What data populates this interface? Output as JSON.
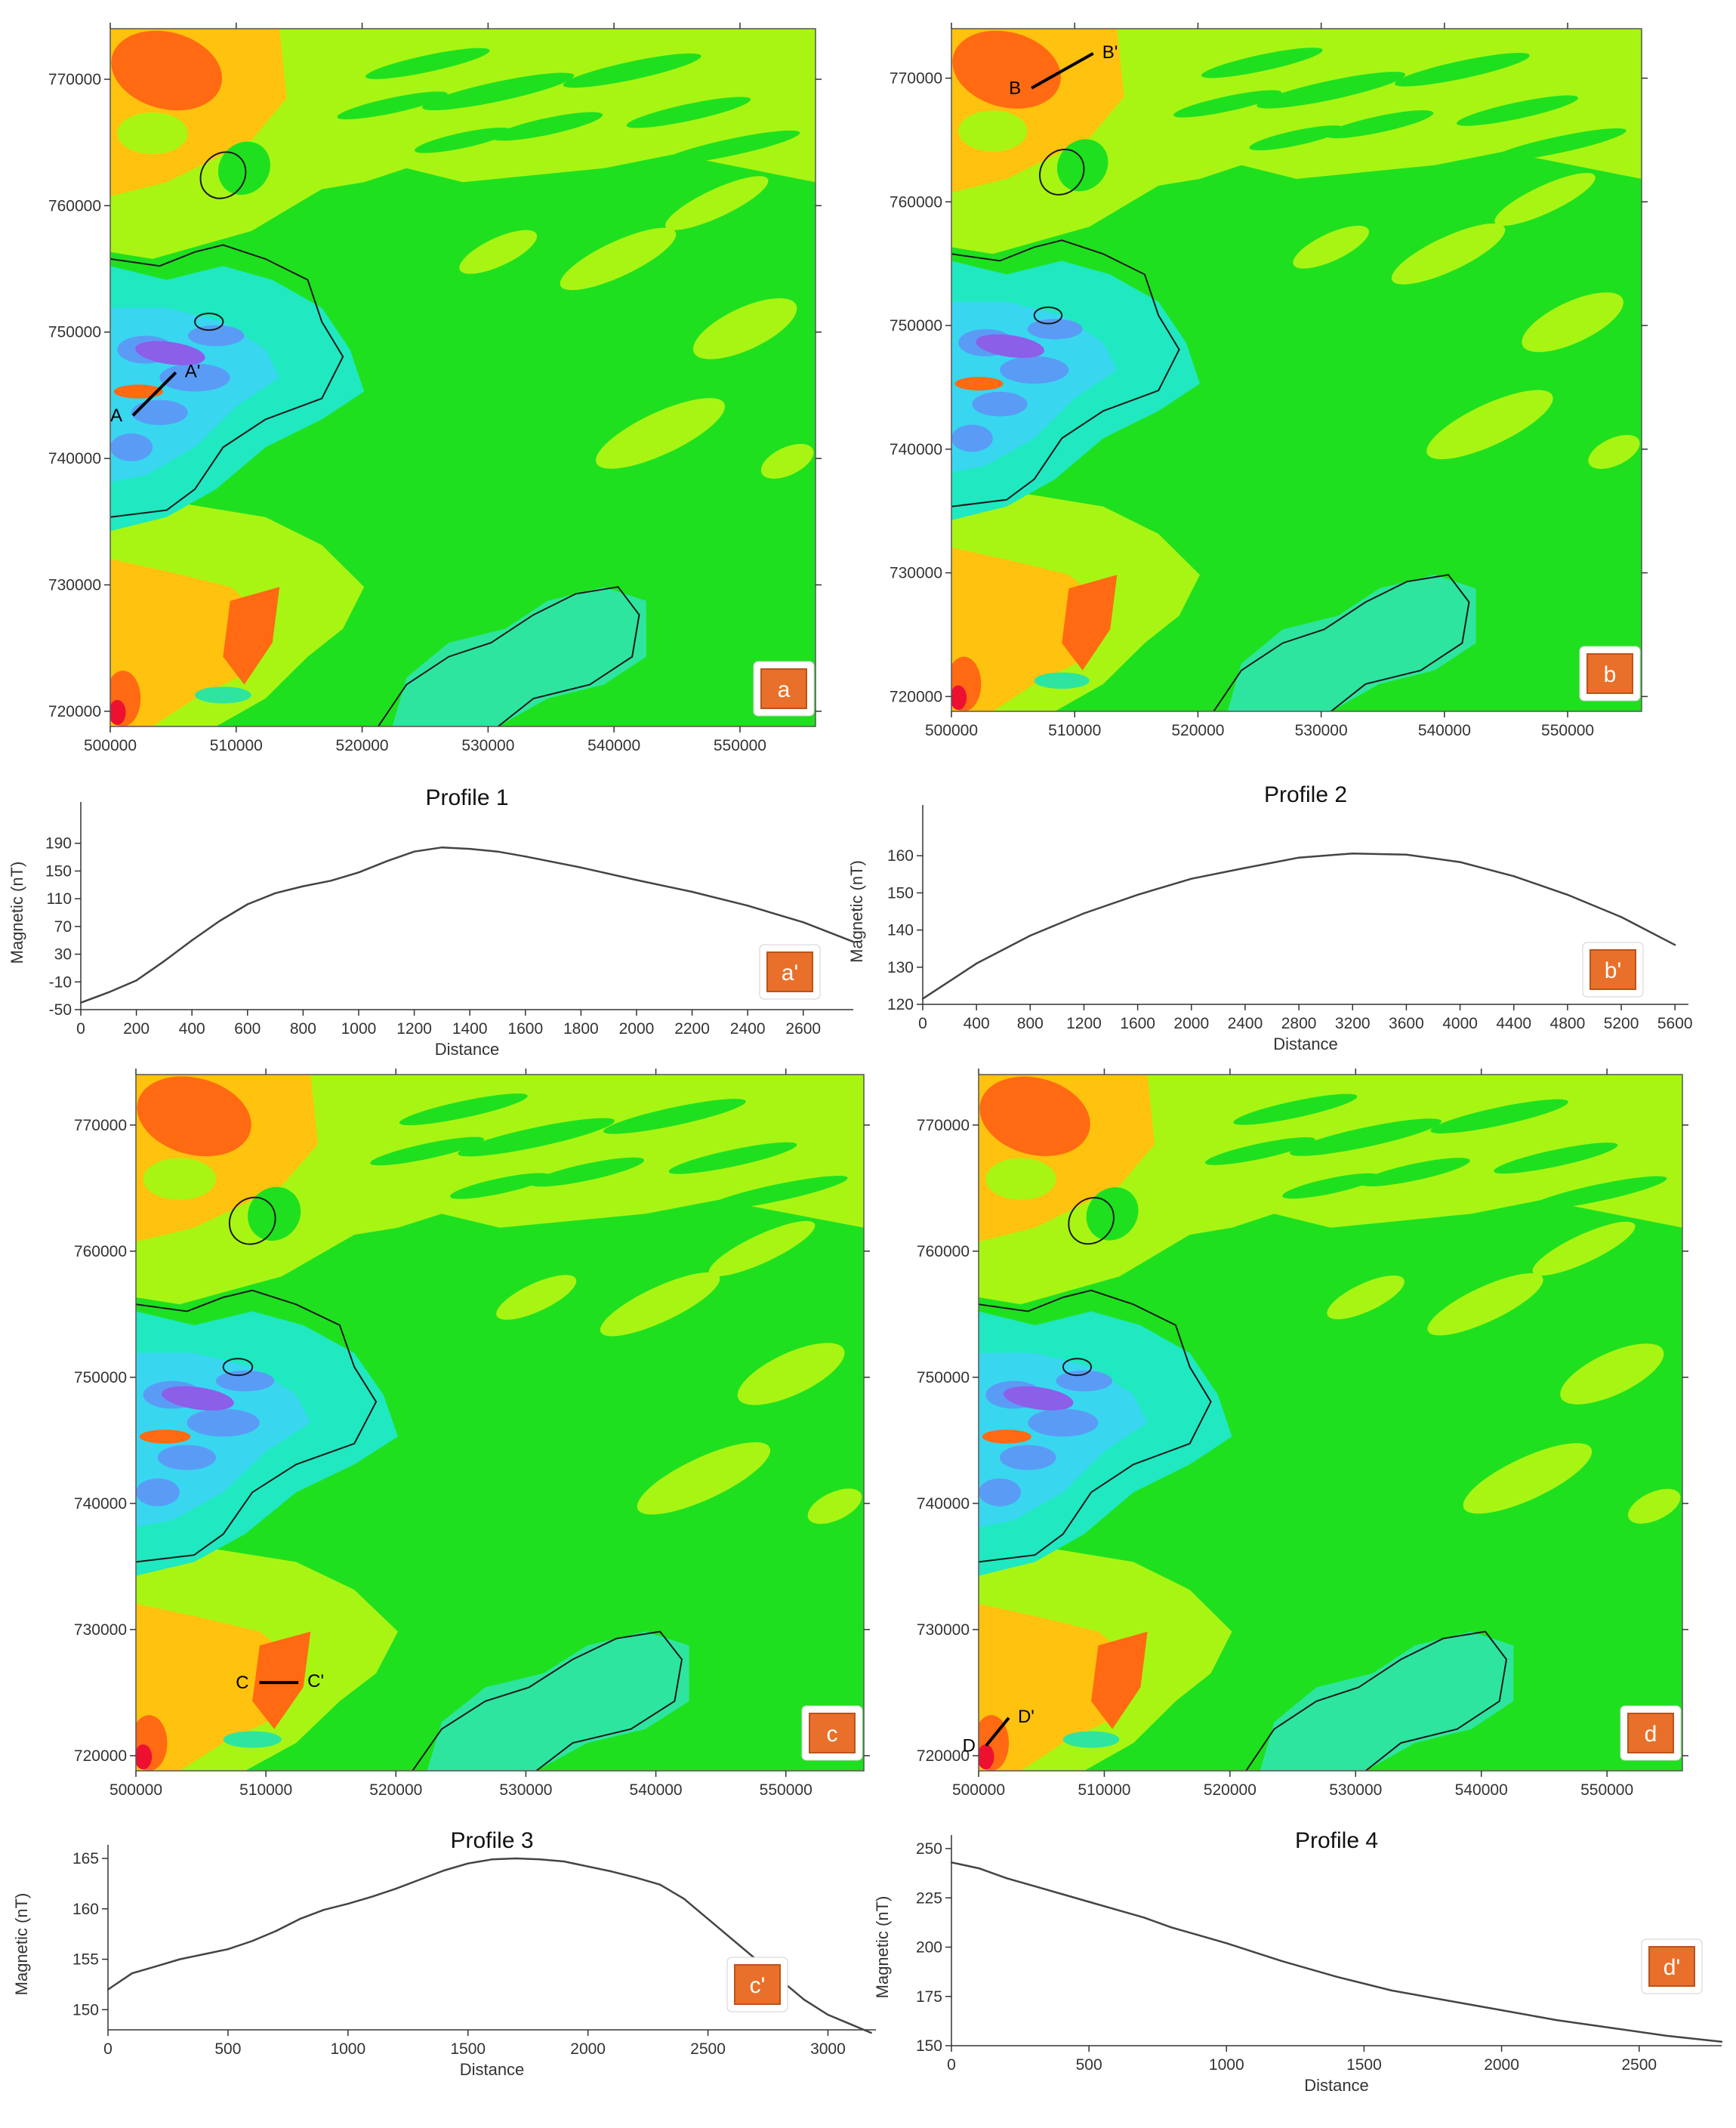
{
  "colors": {
    "green_base": "#1fe01f",
    "yellow_green": "#a8f514",
    "orange_yellow": "#ffc20e",
    "orange": "#ff6a12",
    "red": "#ee1030",
    "cyan": "#20e8c0",
    "teal": "#2ee5a0",
    "aqua": "#39d6f0",
    "blue": "#5a9cf5",
    "purple": "#8b5fe8",
    "badge": "#e8702a",
    "profile_line": "#444444"
  },
  "maps": [
    {
      "badge": "a",
      "profile_line": {
        "start_label": "A",
        "end_label": "A'",
        "start": [
          501800,
          743400
        ],
        "end": [
          505200,
          746800
        ]
      }
    },
    {
      "badge": "b",
      "profile_line": {
        "start_label": "B",
        "end_label": "B'",
        "start": [
          506500,
          769200
        ],
        "end": [
          511500,
          772000
        ]
      }
    },
    {
      "badge": "c",
      "profile_line": {
        "start_label": "C",
        "end_label": "C'",
        "start": [
          509500,
          725800
        ],
        "end": [
          512500,
          725800
        ]
      }
    },
    {
      "badge": "d",
      "profile_line": {
        "start_label": "D",
        "end_label": "D'",
        "start": [
          500600,
          720800
        ],
        "end": [
          502400,
          723000
        ]
      }
    }
  ],
  "map_axes": {
    "x_ticks": [
      500000,
      510000,
      520000,
      530000,
      540000,
      550000
    ],
    "x_tick_labels": [
      "500000",
      "510000",
      "520000",
      "530000",
      "540000",
      "550000"
    ],
    "y_ticks": [
      720000,
      730000,
      740000,
      750000,
      760000,
      770000
    ],
    "y_tick_labels": [
      "720000",
      "730000",
      "740000",
      "750000",
      "760000",
      "770000"
    ],
    "xlim": [
      500000,
      556000
    ],
    "ylim": [
      718800,
      774000
    ]
  },
  "chart_data": [
    {
      "type": "line",
      "badge": "a'",
      "title": "Profile 1",
      "xlabel": "Distance",
      "ylabel": "Magnetic (nT)",
      "xlim": [
        0,
        2780
      ],
      "ylim": [
        -50,
        230
      ],
      "x_ticks": [
        0,
        200,
        400,
        600,
        800,
        1000,
        1200,
        1400,
        1600,
        1800,
        2000,
        2200,
        2400,
        2600
      ],
      "y_ticks": [
        -50,
        -10,
        30,
        70,
        110,
        150,
        190
      ],
      "x": [
        0,
        100,
        200,
        300,
        400,
        500,
        600,
        700,
        800,
        900,
        1000,
        1100,
        1200,
        1300,
        1400,
        1500,
        1600,
        1800,
        2000,
        2200,
        2400,
        2600,
        2780
      ],
      "y": [
        -40,
        -25,
        -8,
        20,
        50,
        78,
        102,
        118,
        128,
        136,
        148,
        164,
        178,
        184,
        182,
        178,
        171,
        155,
        137,
        120,
        100,
        76,
        48
      ]
    },
    {
      "type": "line",
      "badge": "b'",
      "title": "Profile 2",
      "xlabel": "Distance",
      "ylabel": "Magnetic (nT)",
      "xlim": [
        0,
        5700
      ],
      "ylim": [
        120,
        170
      ],
      "x_ticks": [
        0,
        400,
        800,
        1200,
        1600,
        2000,
        2400,
        2800,
        3200,
        3600,
        4000,
        4400,
        4800,
        5200,
        5600
      ],
      "y_ticks": [
        120,
        130,
        140,
        150,
        160
      ],
      "x": [
        0,
        400,
        800,
        1200,
        1600,
        2000,
        2400,
        2800,
        3200,
        3600,
        4000,
        4400,
        4800,
        5200,
        5600
      ],
      "y": [
        121.5,
        131,
        138.5,
        144.5,
        149.5,
        153.8,
        156.7,
        159.5,
        160.6,
        160.3,
        158.3,
        154.5,
        149.5,
        143.5,
        136
      ]
    },
    {
      "type": "line",
      "badge": "c'",
      "title": "Profile 3",
      "xlabel": "Distance",
      "ylabel": "Magnetic (nT)",
      "xlim": [
        0,
        3200
      ],
      "ylim": [
        148,
        165
      ],
      "x_ticks": [
        0,
        500,
        1000,
        1500,
        2000,
        2500,
        3000
      ],
      "y_ticks": [
        150,
        155,
        160,
        165
      ],
      "x": [
        0,
        100,
        200,
        300,
        400,
        500,
        600,
        700,
        800,
        900,
        1000,
        1100,
        1200,
        1300,
        1400,
        1500,
        1600,
        1700,
        1800,
        1900,
        2000,
        2100,
        2200,
        2300,
        2400,
        2500,
        2600,
        2700,
        2800,
        2900,
        3000,
        3100,
        3180
      ],
      "y": [
        152,
        153.6,
        154.3,
        155,
        155.5,
        156,
        156.8,
        157.8,
        159,
        159.9,
        160.5,
        161.2,
        162,
        162.9,
        163.8,
        164.5,
        164.9,
        165,
        164.9,
        164.7,
        164.2,
        163.7,
        163.1,
        162.4,
        161,
        159,
        157,
        155,
        153,
        151,
        149.5,
        148.5,
        147.7
      ]
    },
    {
      "type": "line",
      "badge": "d'",
      "title": "Profile 4",
      "xlabel": "Distance",
      "ylabel": "Magnetic (nT)",
      "xlim": [
        0,
        2800
      ],
      "ylim": [
        150,
        250
      ],
      "x_ticks": [
        0,
        500,
        1000,
        1500,
        2000,
        2500
      ],
      "y_ticks": [
        150,
        175,
        200,
        225,
        250
      ],
      "x": [
        0,
        100,
        200,
        300,
        400,
        500,
        600,
        700,
        800,
        900,
        1000,
        1200,
        1400,
        1600,
        1800,
        2000,
        2200,
        2400,
        2600,
        2800
      ],
      "y": [
        243,
        240,
        235,
        231,
        227,
        223,
        219,
        215,
        210,
        206,
        202,
        193,
        185,
        178,
        173,
        168,
        163,
        159,
        155,
        152
      ]
    }
  ]
}
